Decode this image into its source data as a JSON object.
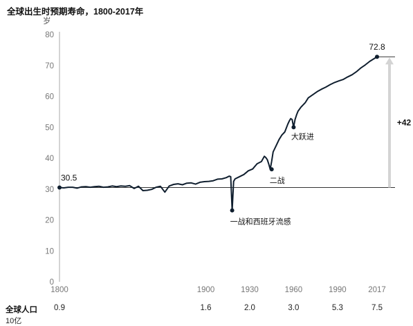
{
  "title": "全球出生时预期寿命，1800-2017年",
  "ylabel": "岁",
  "population": {
    "label": "全球人口",
    "unit": "10亿",
    "values": [
      {
        "year": 1800,
        "text": "0.9"
      },
      {
        "year": 1900,
        "text": "1.6"
      },
      {
        "year": 1930,
        "text": "2.0"
      },
      {
        "year": 1960,
        "text": "3.0"
      },
      {
        "year": 1990,
        "text": "5.3"
      },
      {
        "year": 2017,
        "text": "7.5"
      }
    ]
  },
  "chart_data": {
    "type": "line",
    "title": "全球出生时预期寿命，1800-2017年",
    "xlabel": "",
    "ylabel": "岁",
    "xlim": [
      1800,
      2017
    ],
    "ylim": [
      0,
      80
    ],
    "yticks": [
      0,
      10,
      20,
      30,
      40,
      50,
      60,
      70,
      80
    ],
    "xticks": [
      "1800",
      "1900",
      "1930",
      "1960",
      "1990",
      "2017"
    ],
    "series": [
      {
        "x": [
          1800,
          1803,
          1806,
          1809,
          1812,
          1815,
          1818,
          1821,
          1824,
          1827,
          1830,
          1833,
          1836,
          1839,
          1842,
          1845,
          1848,
          1851,
          1854,
          1857,
          1860,
          1863,
          1866,
          1869,
          1872,
          1875,
          1878,
          1881,
          1884,
          1887,
          1890,
          1893,
          1896,
          1899,
          1902,
          1905,
          1908,
          1911,
          1914,
          1916,
          1917,
          1918,
          1919,
          1920,
          1923,
          1926,
          1929,
          1932,
          1935,
          1938,
          1940,
          1941,
          1942,
          1943,
          1944,
          1945,
          1946,
          1948,
          1950,
          1952,
          1954,
          1956,
          1957,
          1958,
          1959,
          1960,
          1961,
          1962,
          1963,
          1965,
          1968,
          1970,
          1973,
          1976,
          1979,
          1982,
          1985,
          1988,
          1991,
          1994,
          1997,
          2000,
          2003,
          2006,
          2009,
          2012,
          2015,
          2017
        ],
        "values": [
          30.5,
          30.4,
          30.6,
          30.6,
          30.3,
          30.7,
          30.8,
          30.6,
          30.8,
          30.9,
          30.6,
          30.7,
          31.0,
          30.8,
          31.0,
          30.9,
          31.1,
          30.2,
          30.9,
          29.5,
          29.6,
          29.9,
          30.6,
          30.9,
          29.0,
          31.0,
          31.5,
          31.7,
          31.4,
          31.9,
          32.0,
          31.6,
          32.2,
          32.4,
          32.5,
          32.7,
          33.2,
          33.3,
          33.7,
          34.2,
          34.0,
          23.1,
          32.5,
          33.3,
          34.0,
          34.7,
          35.9,
          36.5,
          38.2,
          38.9,
          40.6,
          40.2,
          39.5,
          38.1,
          36.4,
          39.0,
          42.0,
          44.0,
          46.0,
          47.5,
          48.5,
          51.0,
          52.0,
          52.8,
          52.5,
          50.0,
          52.5,
          54.0,
          55.2,
          56.5,
          58.0,
          59.5,
          60.5,
          61.5,
          62.3,
          63.0,
          63.8,
          64.5,
          65.0,
          65.5,
          66.3,
          67.0,
          68.0,
          69.2,
          70.2,
          71.3,
          72.2,
          72.8
        ]
      }
    ],
    "annotations": [
      {
        "text": "30.5",
        "x": 1800,
        "y": 30.5
      },
      {
        "text": "一战和西班牙流感",
        "x": 1918,
        "y": 23.1
      },
      {
        "text": "二战",
        "x": 1945,
        "y": 36.4
      },
      {
        "text": "大跃进",
        "x": 1960,
        "y": 50.0
      },
      {
        "text": "72.8",
        "x": 2017,
        "y": 72.8
      },
      {
        "text": "+42",
        "x": 2017,
        "y": 51.5
      }
    ],
    "grid": false,
    "colors": {
      "line": "#0f1e2e",
      "reference": "#333333",
      "arrow": "#d4d4d4",
      "axis": "#aaaaaa"
    }
  }
}
